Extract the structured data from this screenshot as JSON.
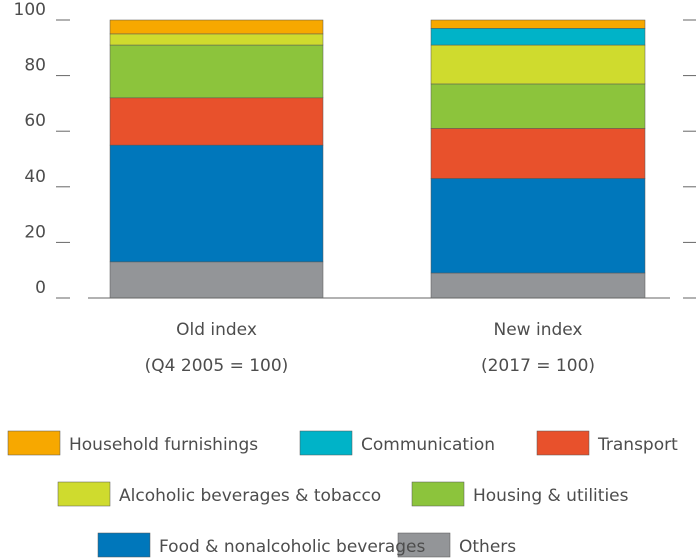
{
  "chart_data": {
    "type": "stacked_bar",
    "categories": [
      [
        "Old index",
        "(Q4 2005 = 100)"
      ],
      [
        "New index",
        "(2017 = 100)"
      ]
    ],
    "series": [
      {
        "name": "Others",
        "color": "#939598",
        "values": [
          13,
          9
        ]
      },
      {
        "name": "Food & nonalcoholic beverages",
        "color": "#0077bb",
        "values": [
          42,
          34
        ]
      },
      {
        "name": "Transport",
        "color": "#e8512c",
        "values": [
          17,
          18
        ]
      },
      {
        "name": "Housing & utilities",
        "color": "#8cc43c",
        "values": [
          19,
          16
        ]
      },
      {
        "name": "Alcoholic beverages & tobacco",
        "color": "#cfdb2e",
        "values": [
          4,
          14
        ]
      },
      {
        "name": "Communication",
        "color": "#00b3c8",
        "values": [
          0,
          6
        ]
      },
      {
        "name": "Household furnishings",
        "color": "#f7a800",
        "values": [
          5,
          3
        ]
      }
    ],
    "ylim": [
      0,
      100
    ],
    "yticks": [
      0,
      20,
      40,
      60,
      80,
      100
    ]
  }
}
